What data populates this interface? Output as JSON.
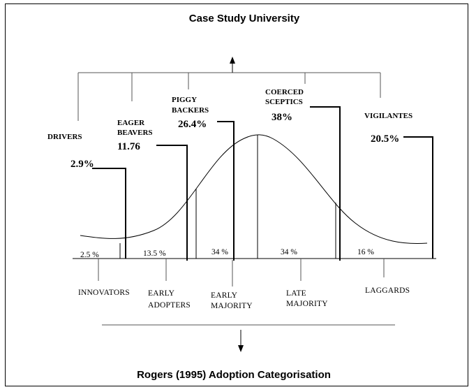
{
  "title": "Case Study University",
  "caption": "Rogers (1995) Adoption Categorisation",
  "groups": [
    {
      "name_lines": [
        "DRIVERS"
      ],
      "percent": "2.9%"
    },
    {
      "name_lines": [
        "EAGER",
        "BEAVERS"
      ],
      "percent": "11.76"
    },
    {
      "name_lines": [
        "PIGGY",
        "BACKERS"
      ],
      "percent": "26.4%"
    },
    {
      "name_lines": [
        "COERCED",
        "SCEPTICS"
      ],
      "percent": "38%"
    },
    {
      "name_lines": [
        "VIGILANTES"
      ],
      "percent": "20.5%"
    }
  ],
  "segments": [
    "2.5 %",
    "13.5 %",
    "34 %",
    "34 %",
    "16 %"
  ],
  "categories": [
    {
      "lines": [
        "INNOVATORS"
      ]
    },
    {
      "lines": [
        "EARLY",
        "ADOPTERS"
      ]
    },
    {
      "lines": [
        "EARLY",
        "MAJORITY"
      ]
    },
    {
      "lines": [
        "LATE",
        "MAJORITY"
      ]
    },
    {
      "lines": [
        "LAGGARDS"
      ]
    }
  ]
}
